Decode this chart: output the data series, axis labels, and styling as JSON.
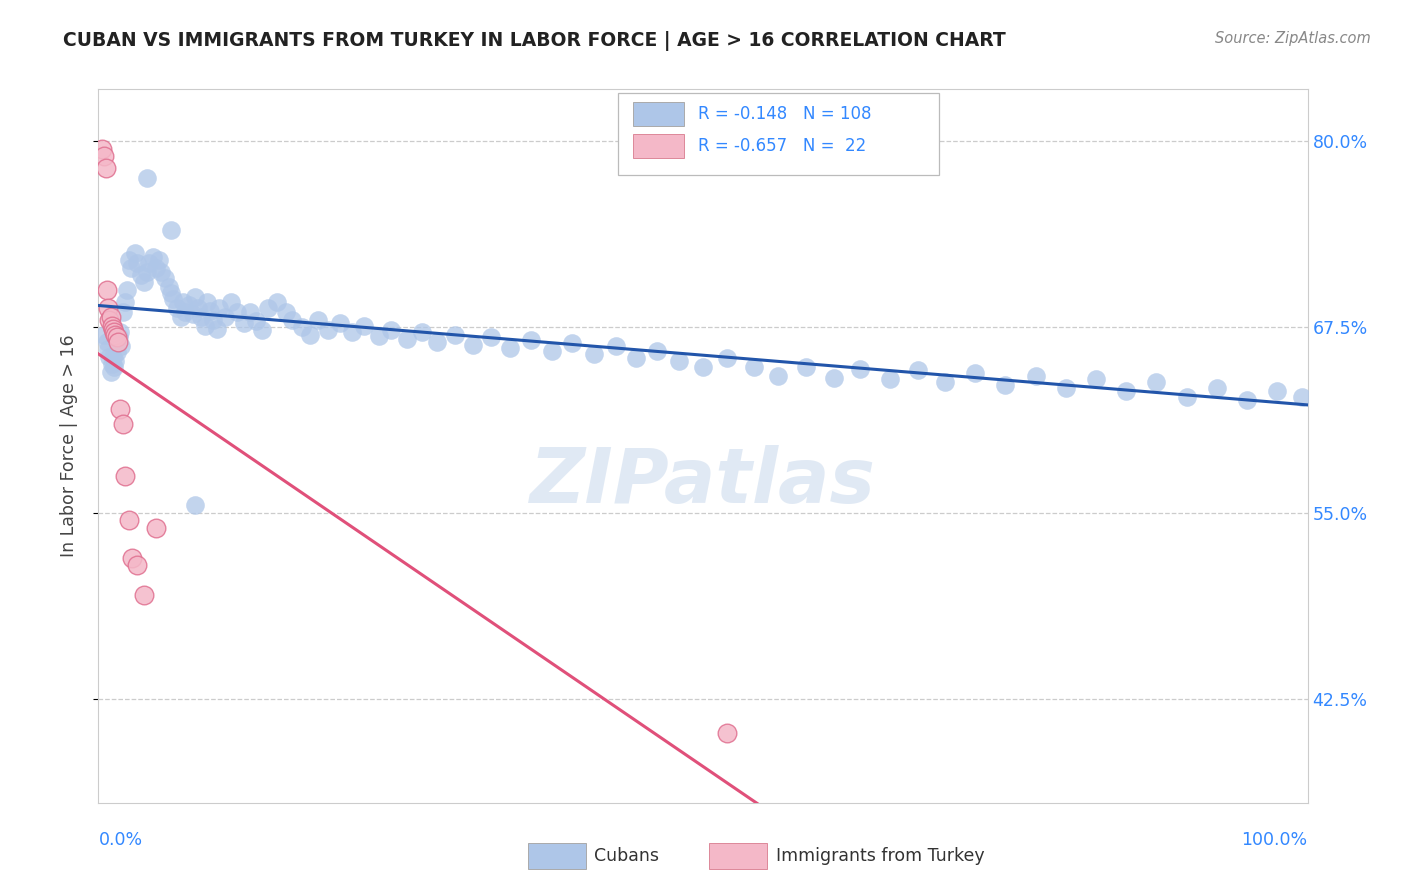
{
  "title": "CUBAN VS IMMIGRANTS FROM TURKEY IN LABOR FORCE | AGE > 16 CORRELATION CHART",
  "source": "Source: ZipAtlas.com",
  "ylabel": "In Labor Force | Age > 16",
  "ytick_vals": [
    0.425,
    0.55,
    0.675,
    0.8
  ],
  "ytick_labels": [
    "42.5%",
    "55.0%",
    "67.5%",
    "80.0%"
  ],
  "xmin": 0.0,
  "xmax": 1.0,
  "ymin": 0.355,
  "ymax": 0.835,
  "legend_r_blue": "-0.148",
  "legend_n_blue": "108",
  "legend_r_pink": "-0.657",
  "legend_n_pink": "22",
  "blue_dot_color": "#aec6e8",
  "blue_line_color": "#2255aa",
  "pink_dot_color": "#f4b8c8",
  "pink_dot_edge": "#e07090",
  "pink_line_color": "#e0507a",
  "watermark": "ZIPatlas",
  "cubans_x": [
    0.005,
    0.007,
    0.008,
    0.009,
    0.01,
    0.011,
    0.012,
    0.013,
    0.014,
    0.015,
    0.016,
    0.017,
    0.018,
    0.019,
    0.02,
    0.022,
    0.024,
    0.025,
    0.027,
    0.03,
    0.032,
    0.035,
    0.038,
    0.04,
    0.042,
    0.045,
    0.048,
    0.05,
    0.052,
    0.055,
    0.058,
    0.06,
    0.062,
    0.065,
    0.068,
    0.07,
    0.072,
    0.075,
    0.078,
    0.08,
    0.082,
    0.085,
    0.088,
    0.09,
    0.092,
    0.095,
    0.098,
    0.1,
    0.105,
    0.11,
    0.115,
    0.12,
    0.125,
    0.13,
    0.135,
    0.14,
    0.148,
    0.155,
    0.16,
    0.168,
    0.175,
    0.182,
    0.19,
    0.2,
    0.21,
    0.22,
    0.232,
    0.242,
    0.255,
    0.268,
    0.28,
    0.295,
    0.31,
    0.325,
    0.34,
    0.358,
    0.375,
    0.392,
    0.41,
    0.428,
    0.445,
    0.462,
    0.48,
    0.5,
    0.52,
    0.542,
    0.562,
    0.585,
    0.608,
    0.63,
    0.655,
    0.678,
    0.7,
    0.725,
    0.75,
    0.775,
    0.8,
    0.825,
    0.85,
    0.875,
    0.9,
    0.925,
    0.95,
    0.975,
    0.995,
    0.04,
    0.06,
    0.08
  ],
  "cubans_y": [
    0.67,
    0.665,
    0.66,
    0.655,
    0.645,
    0.65,
    0.655,
    0.648,
    0.652,
    0.658,
    0.664,
    0.668,
    0.672,
    0.662,
    0.685,
    0.692,
    0.7,
    0.72,
    0.715,
    0.725,
    0.718,
    0.71,
    0.705,
    0.712,
    0.718,
    0.722,
    0.715,
    0.72,
    0.712,
    0.708,
    0.702,
    0.698,
    0.694,
    0.688,
    0.682,
    0.692,
    0.685,
    0.69,
    0.684,
    0.695,
    0.688,
    0.682,
    0.676,
    0.692,
    0.686,
    0.68,
    0.674,
    0.688,
    0.682,
    0.692,
    0.685,
    0.678,
    0.685,
    0.679,
    0.673,
    0.688,
    0.692,
    0.685,
    0.68,
    0.675,
    0.67,
    0.68,
    0.673,
    0.678,
    0.672,
    0.676,
    0.669,
    0.673,
    0.667,
    0.672,
    0.665,
    0.67,
    0.663,
    0.668,
    0.661,
    0.666,
    0.659,
    0.664,
    0.657,
    0.662,
    0.654,
    0.659,
    0.652,
    0.648,
    0.654,
    0.648,
    0.642,
    0.648,
    0.641,
    0.647,
    0.64,
    0.646,
    0.638,
    0.644,
    0.636,
    0.642,
    0.634,
    0.64,
    0.632,
    0.638,
    0.628,
    0.634,
    0.626,
    0.632,
    0.628,
    0.775,
    0.74,
    0.555
  ],
  "turkey_x": [
    0.003,
    0.005,
    0.006,
    0.007,
    0.008,
    0.009,
    0.01,
    0.011,
    0.012,
    0.013,
    0.014,
    0.015,
    0.016,
    0.018,
    0.02,
    0.022,
    0.025,
    0.028,
    0.032,
    0.038,
    0.52,
    0.048
  ],
  "turkey_y": [
    0.795,
    0.79,
    0.782,
    0.7,
    0.688,
    0.68,
    0.682,
    0.676,
    0.674,
    0.672,
    0.67,
    0.668,
    0.665,
    0.62,
    0.61,
    0.575,
    0.545,
    0.52,
    0.515,
    0.495,
    0.402,
    0.54
  ]
}
